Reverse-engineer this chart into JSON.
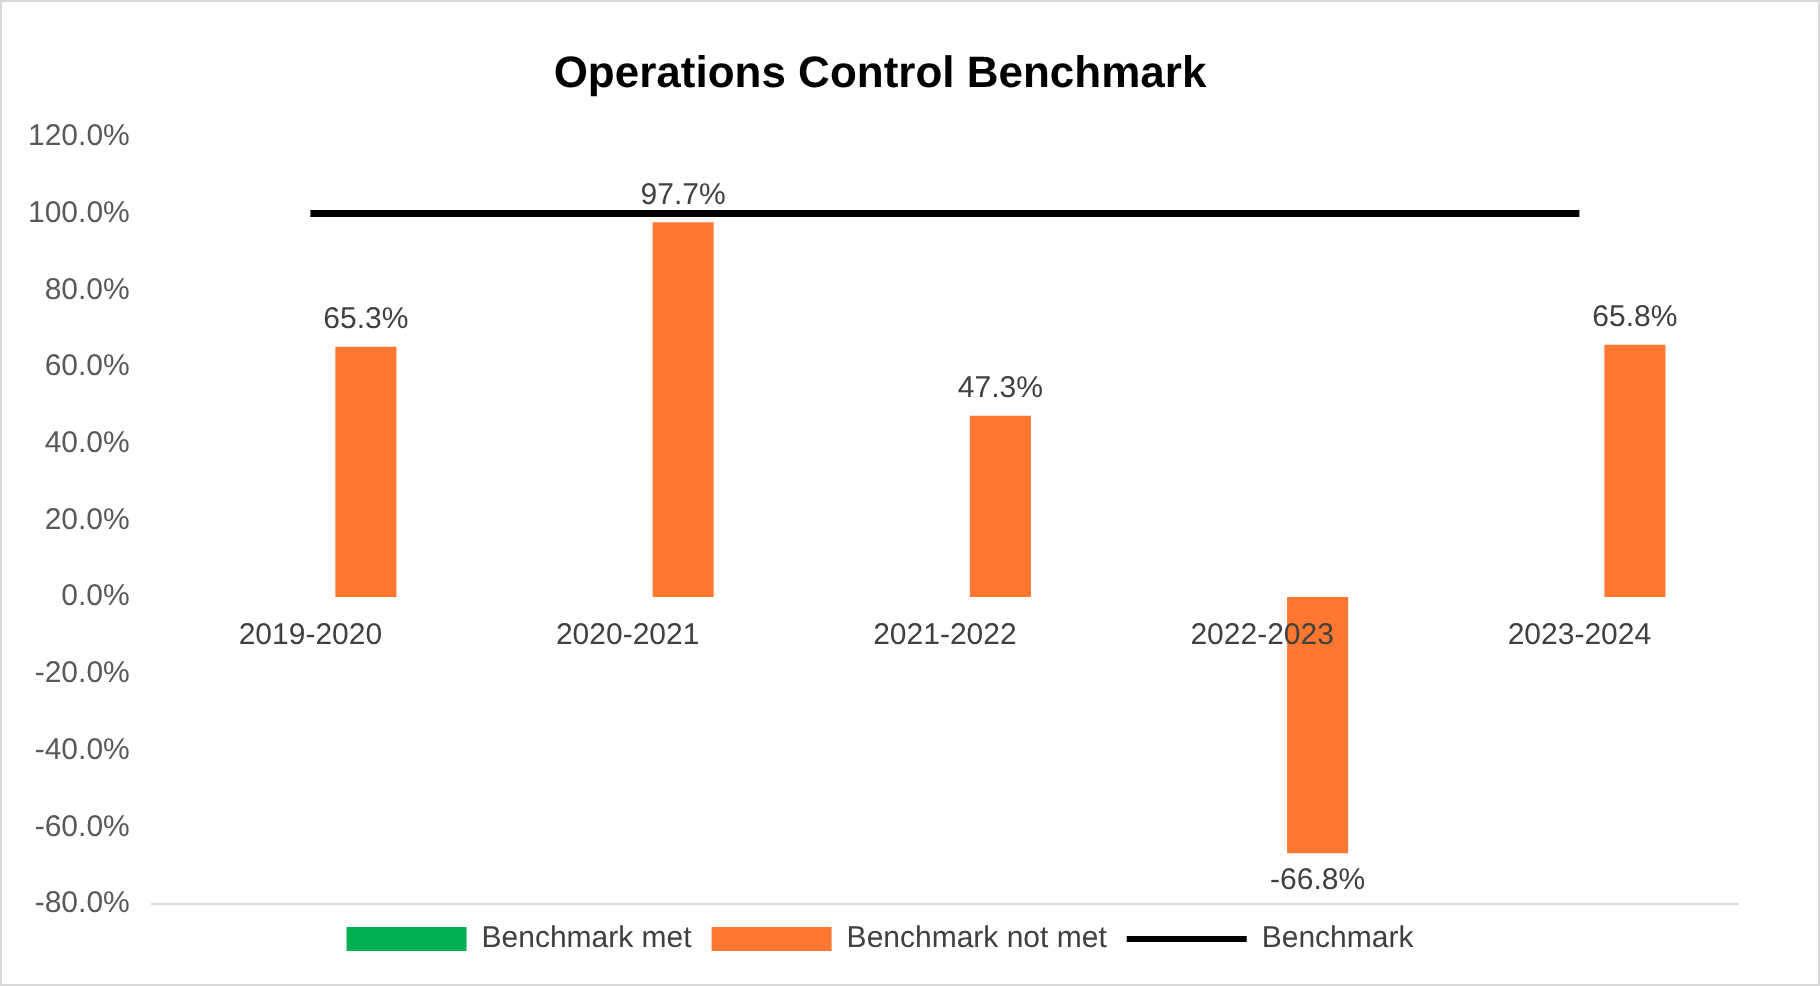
{
  "chart_data": {
    "type": "bar",
    "title": "Operations Control Benchmark",
    "categories": [
      "2019-2020",
      "2020-2021",
      "2021-2022",
      "2022-2023",
      "2023-2024"
    ],
    "series": [
      {
        "name": "Benchmark met",
        "color": "#00b050",
        "values": [
          null,
          null,
          null,
          null,
          null
        ]
      },
      {
        "name": "Benchmark not met",
        "color": "#ff7730",
        "values": [
          65.3,
          97.7,
          47.3,
          -66.8,
          65.8
        ],
        "value_labels": [
          "65.3%",
          "97.7%",
          "47.3%",
          "-66.8%",
          "65.8%"
        ]
      },
      {
        "name": "Benchmark",
        "type": "line",
        "color": "#000000",
        "values": [
          100,
          100,
          100,
          100,
          100
        ],
        "marker": "none"
      }
    ],
    "ylim": [
      -80,
      120
    ],
    "yticks": [
      {
        "value": -80,
        "label": "-80.0%"
      },
      {
        "value": -60,
        "label": "-60.0%"
      },
      {
        "value": -40,
        "label": "-40.0%"
      },
      {
        "value": -20,
        "label": "-20.0%"
      },
      {
        "value": 0,
        "label": "0.0%"
      },
      {
        "value": 20,
        "label": "20.0%"
      },
      {
        "value": 40,
        "label": "40.0%"
      },
      {
        "value": 60,
        "label": "60.0%"
      },
      {
        "value": 80,
        "label": "80.0%"
      },
      {
        "value": 100,
        "label": "100.0%"
      },
      {
        "value": 120,
        "label": "120.0%"
      }
    ],
    "grid": false,
    "legend": "bottom"
  }
}
